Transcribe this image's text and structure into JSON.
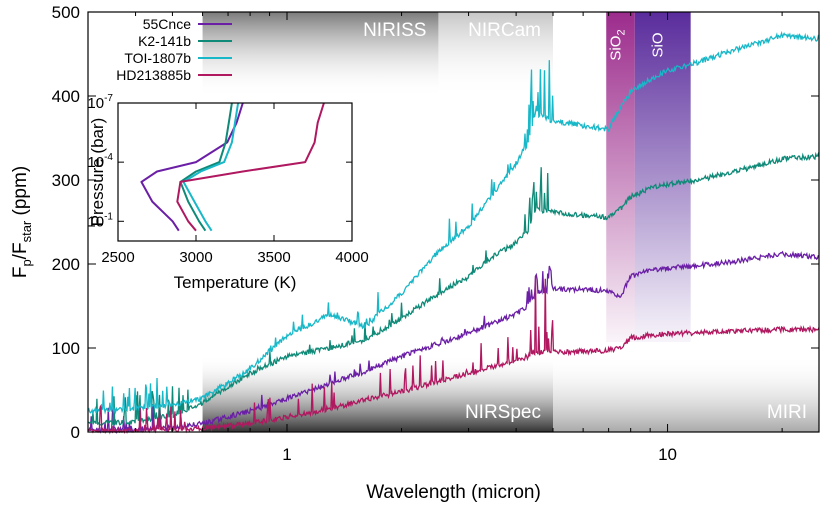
{
  "chart_data": [
    {
      "type": "line",
      "xlabel": "Wavelength (micron)",
      "ylabel": {
        "main": "F",
        "sub1": "p",
        "slash": "/F",
        "sub2": "star",
        "unit": " (ppm)"
      },
      "xscale": "log",
      "xlim": [
        0.3,
        25
      ],
      "ylim": [
        0,
        500
      ],
      "xticks": [
        1,
        10
      ],
      "xtick_labels": [
        "1",
        "10"
      ],
      "yticks": [
        0,
        100,
        200,
        300,
        400,
        500
      ],
      "ytick_labels": [
        "0",
        "100",
        "200",
        "300",
        "400",
        "500"
      ],
      "grid": false,
      "legend_position": "top-left",
      "bands": [
        {
          "label": "NIRISS",
          "xmin": 0.6,
          "xmax": 2.5,
          "position": "top",
          "color": "#8c8c8c"
        },
        {
          "label": "NIRCam",
          "xmin": 2.5,
          "xmax": 5.0,
          "position": "top",
          "color": "#c8c8c8"
        },
        {
          "label": "NIRSpec",
          "xmin": 0.6,
          "xmax": 5.0,
          "position": "bottom",
          "color": "#3c3c3c"
        },
        {
          "label": "MIRI",
          "xmin": 5.0,
          "xmax": 25,
          "position": "bottom",
          "color": "#b4b4b4"
        }
      ],
      "features": [
        {
          "label": "SiO",
          "label_sub": "2",
          "xmin": 6.9,
          "xmax": 8.2,
          "color": "#9c2c8c"
        },
        {
          "label": "SiO",
          "label_sub": "",
          "xmin": 8.2,
          "xmax": 11.5,
          "color": "#5a2c9c"
        }
      ],
      "series": [
        {
          "name": "55Cnce",
          "color": "#6b1fa6",
          "x": [
            0.3,
            0.4,
            0.5,
            0.6,
            0.8,
            1.0,
            1.3,
            1.6,
            2.0,
            2.5,
            3.0,
            3.5,
            4.0,
            4.3,
            4.5,
            5.0,
            6.0,
            7.0,
            7.5,
            8.0,
            9.0,
            10.0,
            12.0,
            15.0,
            20.0,
            25.0
          ],
          "y": [
            2,
            3,
            5,
            10,
            25,
            40,
            58,
            72,
            90,
            105,
            118,
            130,
            140,
            150,
            165,
            170,
            170,
            168,
            160,
            185,
            192,
            195,
            198,
            203,
            212,
            208
          ]
        },
        {
          "name": "K2-141b",
          "color": "#0f8a78",
          "x": [
            0.3,
            0.4,
            0.5,
            0.6,
            0.8,
            1.0,
            1.3,
            1.6,
            2.0,
            2.5,
            3.0,
            3.5,
            4.0,
            4.3,
            4.5,
            5.0,
            6.0,
            7.0,
            7.5,
            8.0,
            9.0,
            10.0,
            12.0,
            15.0,
            20.0,
            25.0
          ],
          "y": [
            10,
            12,
            20,
            35,
            70,
            90,
            100,
            110,
            135,
            165,
            185,
            210,
            225,
            240,
            265,
            262,
            258,
            255,
            265,
            280,
            290,
            295,
            300,
            310,
            325,
            328
          ]
        },
        {
          "name": "TOI-1807b",
          "color": "#18b8c8",
          "x": [
            0.3,
            0.4,
            0.5,
            0.6,
            0.8,
            1.0,
            1.3,
            1.6,
            2.0,
            2.5,
            3.0,
            3.5,
            4.0,
            4.3,
            4.5,
            5.0,
            6.0,
            7.0,
            7.5,
            8.0,
            9.0,
            10.0,
            12.0,
            15.0,
            20.0,
            25.0
          ],
          "y": [
            25,
            28,
            32,
            40,
            75,
            115,
            140,
            125,
            165,
            215,
            245,
            285,
            320,
            345,
            380,
            370,
            365,
            360,
            385,
            405,
            420,
            430,
            440,
            455,
            472,
            468
          ]
        },
        {
          "name": "HD213885b",
          "color": "#b01860",
          "x": [
            0.3,
            0.4,
            0.5,
            0.6,
            0.8,
            1.0,
            1.3,
            1.6,
            2.0,
            2.5,
            3.0,
            3.5,
            4.0,
            4.3,
            4.5,
            5.0,
            6.0,
            7.0,
            7.5,
            8.0,
            9.0,
            10.0,
            12.0,
            15.0,
            20.0,
            25.0
          ],
          "y": [
            1,
            2,
            3,
            4,
            10,
            18,
            28,
            38,
            48,
            60,
            70,
            78,
            85,
            90,
            95,
            95,
            96,
            97,
            100,
            112,
            115,
            117,
            118,
            120,
            122,
            122
          ]
        }
      ]
    },
    {
      "type": "line",
      "xlabel": "Temperature (K)",
      "ylabel": "Pressure (bar)",
      "xlim": [
        2500,
        4000
      ],
      "xticks": [
        2500,
        3000,
        3500,
        4000
      ],
      "xtick_labels": [
        "2500",
        "3000",
        "3500",
        "4000"
      ],
      "yscale": "log",
      "ylim": [
        1,
        1e-07
      ],
      "yticks": [
        1e-07,
        0.0001,
        0.1
      ],
      "ytick_labels": [
        {
          "base": "10",
          "exp": "-7"
        },
        {
          "base": "10",
          "exp": "-4"
        },
        {
          "base": "10",
          "exp": "-1"
        }
      ],
      "series": [
        {
          "name": "55Cnce",
          "color": "#6b1fa6",
          "T": [
            3300,
            3260,
            3200,
            3000,
            2750,
            2650,
            2720,
            2850,
            2890
          ],
          "P": [
            1e-07,
            1e-06,
            1e-05,
            0.0001,
            0.0003,
            0.001,
            0.01,
            0.1,
            0.3
          ]
        },
        {
          "name": "K2-141b",
          "color": "#0f8a78",
          "T": [
            3230,
            3210,
            3190,
            3150,
            3000,
            2900,
            2950,
            3020,
            3060
          ],
          "P": [
            1e-07,
            1e-06,
            1e-05,
            0.0001,
            0.0003,
            0.001,
            0.01,
            0.1,
            0.3
          ]
        },
        {
          "name": "TOI-1807b",
          "color": "#18b8c8",
          "T": [
            3270,
            3250,
            3230,
            3180,
            3030,
            2920,
            2990,
            3060,
            3100
          ],
          "P": [
            1e-07,
            1e-06,
            1e-05,
            0.0001,
            0.0003,
            0.001,
            0.01,
            0.1,
            0.3
          ]
        },
        {
          "name": "HD213885b",
          "color": "#b01860",
          "T": [
            3820,
            3780,
            3760,
            3700,
            3300,
            2900,
            2880,
            2950,
            3000
          ],
          "P": [
            1e-07,
            1e-06,
            1e-05,
            0.0001,
            0.0003,
            0.001,
            0.01,
            0.1,
            0.3
          ]
        }
      ]
    }
  ]
}
